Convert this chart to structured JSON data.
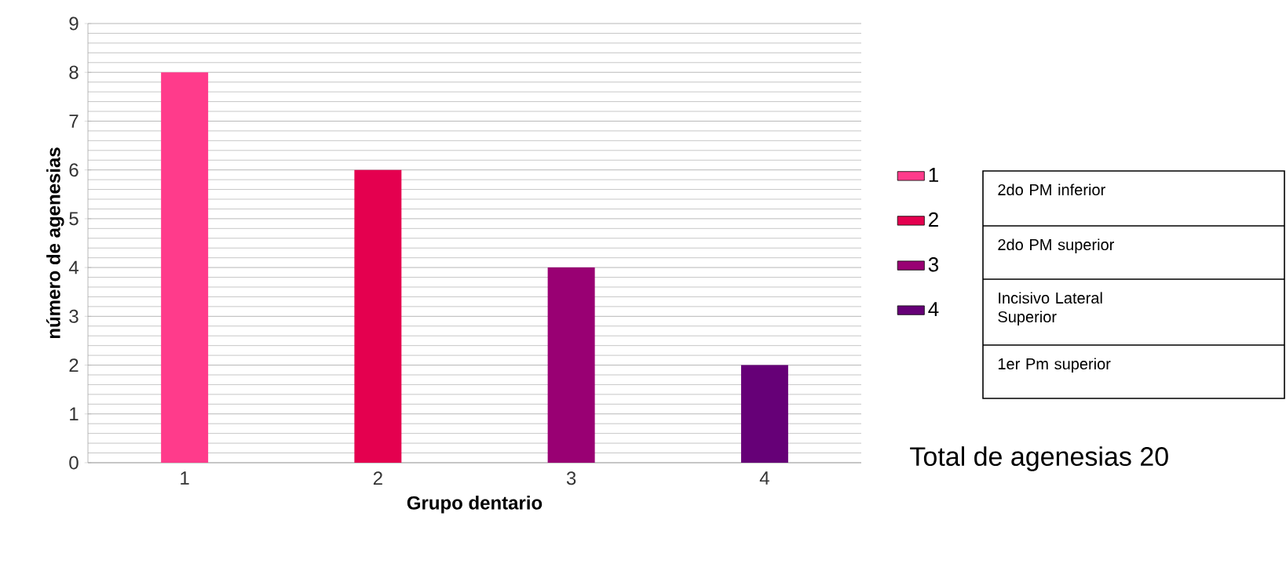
{
  "chart_data": {
    "type": "bar",
    "xlabel": "Grupo dentario",
    "ylabel": "número de agenesias",
    "categories": [
      "1",
      "2",
      "3",
      "4"
    ],
    "series": [
      {
        "name": "1",
        "color": "#ff3b8b",
        "values": [
          8,
          null,
          null,
          null
        ]
      },
      {
        "name": "2",
        "color": "#e4004f",
        "values": [
          null,
          6,
          null,
          null
        ]
      },
      {
        "name": "3",
        "color": "#990073",
        "values": [
          null,
          null,
          4,
          null
        ]
      },
      {
        "name": "4",
        "color": "#660077",
        "values": [
          null,
          null,
          null,
          2
        ]
      }
    ],
    "ylim": [
      0,
      9
    ],
    "yticks": [
      0,
      1,
      2,
      3,
      4,
      5,
      6,
      7,
      8,
      9
    ],
    "grid": "y",
    "legend": "right",
    "annotations": [
      "2do PM inferior",
      "2do PM superior",
      "Incisivo Lateral Superior",
      "1er Pm superior",
      "Total de agenesias 20"
    ]
  }
}
